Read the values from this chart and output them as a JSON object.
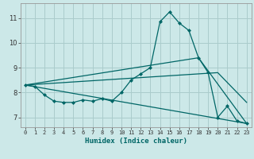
{
  "xlabel": "Humidex (Indice chaleur)",
  "background_color": "#cce8e8",
  "grid_color": "#aacccc",
  "line_color": "#006666",
  "xlim": [
    -0.5,
    23.5
  ],
  "ylim": [
    6.6,
    11.6
  ],
  "yticks": [
    7,
    8,
    9,
    10,
    11
  ],
  "xticks": [
    0,
    1,
    2,
    3,
    4,
    5,
    6,
    7,
    8,
    9,
    10,
    11,
    12,
    13,
    14,
    15,
    16,
    17,
    18,
    19,
    20,
    21,
    22,
    23
  ],
  "main_series": {
    "x": [
      0,
      1,
      2,
      3,
      4,
      5,
      6,
      7,
      8,
      9,
      10,
      11,
      12,
      13,
      14,
      15,
      16,
      17,
      18,
      19,
      20,
      21,
      22,
      23
    ],
    "y": [
      8.3,
      8.25,
      7.9,
      7.65,
      7.6,
      7.6,
      7.7,
      7.65,
      7.75,
      7.65,
      8.0,
      8.5,
      8.75,
      9.0,
      10.85,
      11.25,
      10.8,
      10.5,
      9.4,
      8.8,
      7.0,
      7.45,
      6.85,
      6.75
    ]
  },
  "trend1": {
    "x": [
      0,
      23
    ],
    "y": [
      8.3,
      6.75
    ]
  },
  "trend2": {
    "x": [
      0,
      18,
      23
    ],
    "y": [
      8.3,
      9.4,
      6.75
    ]
  },
  "trend3": {
    "x": [
      0,
      20,
      23
    ],
    "y": [
      8.3,
      8.8,
      7.6
    ]
  }
}
